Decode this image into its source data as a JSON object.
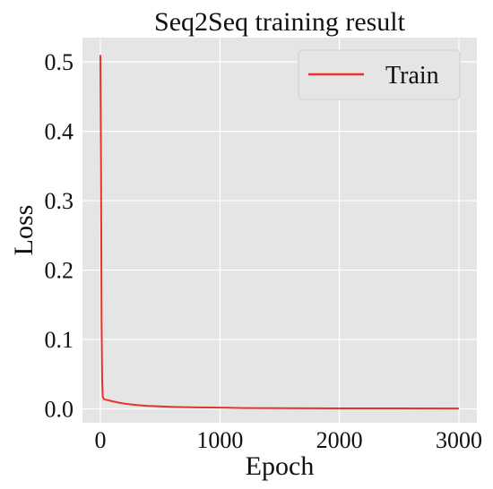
{
  "chart_data": {
    "type": "line",
    "title": "Seq2Seq training result",
    "xlabel": "Epoch",
    "ylabel": "Loss",
    "xlim": [
      -150,
      3150
    ],
    "ylim": [
      -0.02,
      0.535
    ],
    "xticks": [
      0,
      1000,
      2000,
      3000
    ],
    "yticks": [
      0.0,
      0.1,
      0.2,
      0.3,
      0.4,
      0.5
    ],
    "ytick_labels": [
      "0.0",
      "0.1",
      "0.2",
      "0.3",
      "0.4",
      "0.5"
    ],
    "grid": true,
    "legend_position": "top-right",
    "background_color": "#e5e5e5",
    "grid_color": "#ffffff",
    "series": [
      {
        "name": "Train",
        "color": "#e8312a",
        "x": [
          0,
          5,
          10,
          15,
          20,
          30,
          50,
          100,
          150,
          200,
          300,
          400,
          500,
          600,
          700,
          800,
          900,
          1000,
          1200,
          1500,
          2000,
          2500,
          3000
        ],
        "y": [
          0.51,
          0.36,
          0.12,
          0.04,
          0.017,
          0.014,
          0.013,
          0.011,
          0.009,
          0.0075,
          0.0055,
          0.0042,
          0.0035,
          0.0028,
          0.0024,
          0.0021,
          0.0019,
          0.0018,
          0.0012,
          0.0009,
          0.0007,
          0.0006,
          0.0005
        ]
      }
    ]
  }
}
